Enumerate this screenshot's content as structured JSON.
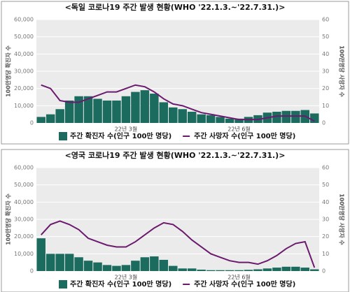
{
  "chart_data": [
    {
      "type": "bar-line",
      "title": "<독일 코로나19 주간 발생 현황(WHO '22.1.3.~'22.7.31.)>",
      "y_label": "100만명당 확진자 수",
      "y2_label": "100만명당 사망자 수",
      "categories": [
        null,
        null,
        null,
        null,
        null,
        null,
        null,
        null,
        null,
        "22년 3월",
        null,
        null,
        null,
        null,
        null,
        null,
        null,
        null,
        null,
        null,
        null,
        "22년 6월",
        null,
        null,
        null,
        null,
        null,
        null,
        null,
        null
      ],
      "series": [
        {
          "name": "주간 확진자 수(인구 100만 명당)",
          "color": "#1b6b5f",
          "values": [
            3500,
            5000,
            8000,
            13000,
            15500,
            15500,
            14000,
            13000,
            13000,
            15500,
            18000,
            19000,
            17000,
            12000,
            9000,
            8000,
            6500,
            5000,
            4500,
            3500,
            2500,
            2500,
            3500,
            4500,
            6000,
            6500,
            7000,
            7000,
            7500,
            5500
          ]
        },
        {
          "name": "주간 사망자 수(인구 100만 명당)",
          "color": "#6b1a6e",
          "axis": "y2",
          "values": [
            22,
            20,
            13,
            12,
            12,
            14,
            16,
            18,
            18,
            20,
            22,
            21,
            18,
            14,
            11,
            10,
            8,
            6,
            5,
            4,
            3,
            2,
            2,
            2,
            3,
            4,
            4,
            4,
            4,
            1
          ]
        }
      ],
      "ylim": [
        0,
        60000
      ],
      "yticks": [
        0,
        {
          "value": 10000,
          "label": "10,000"
        },
        {
          "value": 20000,
          "label": "20,000"
        },
        {
          "value": 30000,
          "label": "30,000"
        },
        {
          "value": 40000,
          "label": "40,000"
        },
        {
          "value": 50000,
          "label": "50,000"
        },
        {
          "value": 60000,
          "label": "60,000"
        }
      ],
      "y2lim": [
        0,
        60
      ],
      "y2ticks": [
        0,
        10,
        20,
        30,
        40,
        50,
        60
      ],
      "grid": true
    },
    {
      "type": "bar-line",
      "title": "<영국 코로나19 주간 발생 현황(WHO '22.1.3.~'22.7.31.)>",
      "y_label": "100만명당 확진자 수",
      "y2_label": "100만명당 사망자 수",
      "categories": [
        null,
        null,
        null,
        null,
        null,
        null,
        null,
        null,
        null,
        "22년 3월",
        null,
        null,
        null,
        null,
        null,
        null,
        null,
        null,
        null,
        null,
        null,
        "22년 6월",
        null,
        null,
        null,
        null,
        null,
        null,
        null,
        null
      ],
      "series": [
        {
          "name": "주간 확진자 수(인구 100만 명당)",
          "color": "#1b6b5f",
          "values": [
            19000,
            10000,
            10000,
            10000,
            8000,
            6000,
            5000,
            3500,
            3000,
            3500,
            6000,
            8000,
            8500,
            6500,
            3000,
            1500,
            1500,
            800,
            500,
            500,
            500,
            500,
            700,
            1000,
            1500,
            2000,
            2500,
            2500,
            2000,
            1000
          ]
        },
        {
          "name": "주간 사망자 수(인구 100만 명당)",
          "color": "#6b1a6e",
          "axis": "y2",
          "values": [
            21,
            27,
            29,
            27,
            24,
            19,
            17,
            15,
            14,
            14,
            17,
            21,
            25,
            28,
            27,
            23,
            18,
            14,
            10,
            8,
            6,
            5,
            5,
            4,
            6,
            9,
            13,
            16,
            17,
            2
          ]
        }
      ],
      "ylim": [
        0,
        60000
      ],
      "yticks": [
        0,
        {
          "value": 10000,
          "label": "10,000"
        },
        {
          "value": 20000,
          "label": "20,000"
        },
        {
          "value": 30000,
          "label": "30,000"
        },
        {
          "value": 40000,
          "label": "40,000"
        },
        {
          "value": 50000,
          "label": "50,000"
        },
        {
          "value": 60000,
          "label": "60,000"
        }
      ],
      "y2lim": [
        0,
        60
      ],
      "y2ticks": [
        0,
        10,
        20,
        30,
        40,
        50,
        60
      ],
      "grid": true
    }
  ]
}
